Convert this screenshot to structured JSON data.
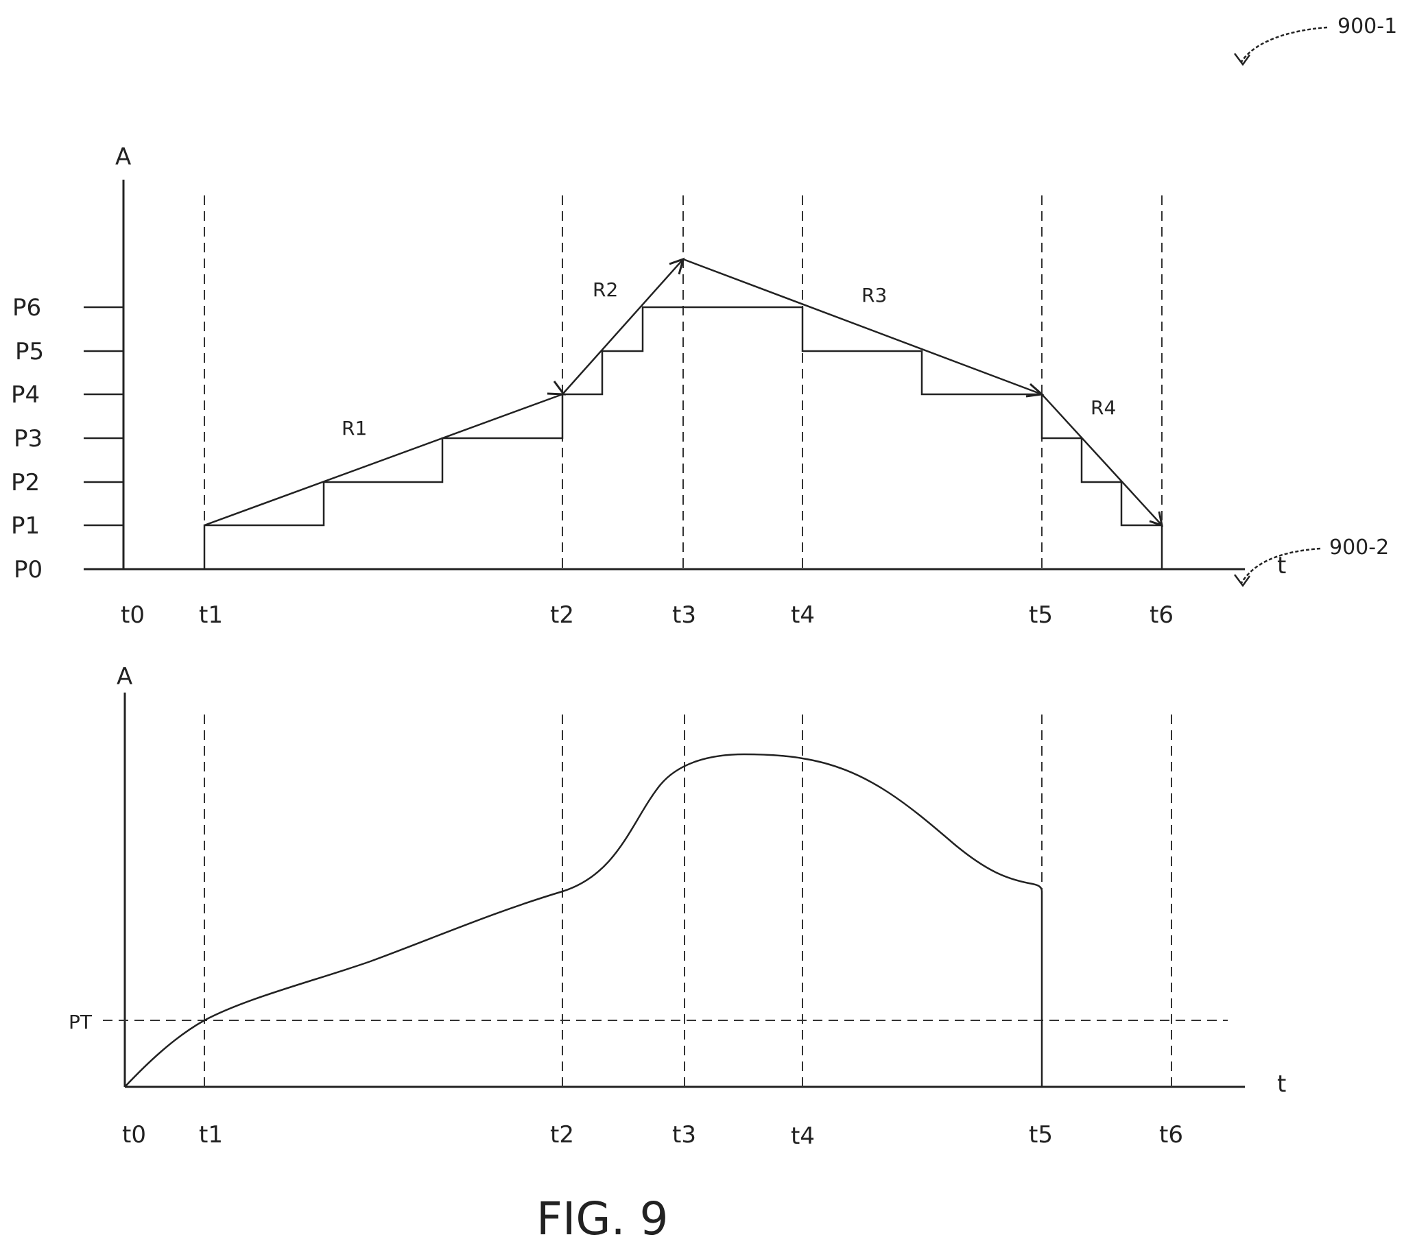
{
  "figure": {
    "caption": "FIG. 9",
    "refs": [
      "900-1",
      "900-2"
    ]
  },
  "top_plot": {
    "y_axis_label": "A",
    "x_axis_label": "t",
    "level_labels": [
      "P0",
      "P1",
      "P2",
      "P3",
      "P4",
      "P5",
      "P6"
    ],
    "time_labels": [
      "t0",
      "t1",
      "t2",
      "t3",
      "t4",
      "t5",
      "t6"
    ],
    "ramp_labels": [
      "R1",
      "R2",
      "R3",
      "R4"
    ],
    "times": [
      0,
      1,
      5.4,
      6.9,
      8.4,
      11.3,
      12.8
    ],
    "step_profile": [
      {
        "t": 1.0,
        "level": 1
      },
      {
        "t": 2.45,
        "level": 2
      },
      {
        "t": 3.9,
        "level": 3
      },
      {
        "t": 5.4,
        "level": 4
      },
      {
        "t": 5.9,
        "level": 5
      },
      {
        "t": 6.4,
        "level": 6
      },
      {
        "t": 8.4,
        "level": 5
      },
      {
        "t": 9.85,
        "level": 4
      },
      {
        "t": 11.3,
        "level": 3
      },
      {
        "t": 11.8,
        "level": 2
      },
      {
        "t": 12.3,
        "level": 1
      },
      {
        "t": 12.8,
        "level": 0
      }
    ],
    "ramp_points": [
      {
        "t": 1.0,
        "level": 1
      },
      {
        "t": 5.4,
        "level": 4
      },
      {
        "t": 6.9,
        "level": 7.05
      },
      {
        "t": 11.3,
        "level": 4
      },
      {
        "t": 12.8,
        "level": 1
      }
    ]
  },
  "bottom_plot": {
    "y_axis_label": "A",
    "x_axis_label": "t",
    "threshold_label": "PT",
    "time_labels": [
      "t0",
      "t1",
      "t2",
      "t3",
      "t4",
      "t5",
      "t6"
    ],
    "times": [
      0,
      1,
      5.4,
      6.9,
      8.4,
      11.3,
      12.8
    ],
    "threshold": 1.0,
    "curve": [
      {
        "t": 0.0,
        "a": 0.0
      },
      {
        "t": 1.0,
        "a": 1.0
      },
      {
        "t": 3.0,
        "a": 1.9
      },
      {
        "t": 5.4,
        "a": 2.8
      },
      {
        "t": 6.9,
        "a": 4.8
      },
      {
        "t": 8.4,
        "a": 5.0
      },
      {
        "t": 11.1,
        "a": 3.0
      },
      {
        "t": 11.3,
        "a": 2.85
      },
      {
        "t": 11.3,
        "a": 0.0
      }
    ]
  }
}
